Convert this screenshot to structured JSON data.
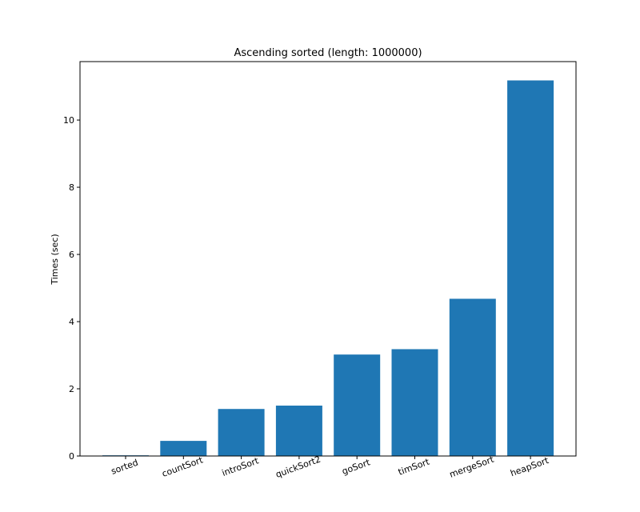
{
  "chart_data": {
    "type": "bar",
    "title": "Ascending sorted (length: 1000000)",
    "xlabel": "",
    "ylabel": "Times (sec)",
    "categories": [
      "sorted",
      "countSort",
      "introSort",
      "quickSort2",
      "goSort",
      "timSort",
      "mergeSort",
      "heapSort"
    ],
    "values": [
      0.02,
      0.45,
      1.4,
      1.5,
      3.02,
      3.18,
      4.68,
      11.18
    ],
    "ylim": [
      0,
      11.74
    ],
    "yticks": [
      0,
      2,
      4,
      6,
      8,
      10
    ],
    "ytick_labels": [
      "0",
      "2",
      "4",
      "6",
      "8",
      "10"
    ],
    "grid": false,
    "legend": "none",
    "xtick_rotation_deg": -20,
    "bar_color": "#1f77b4"
  }
}
